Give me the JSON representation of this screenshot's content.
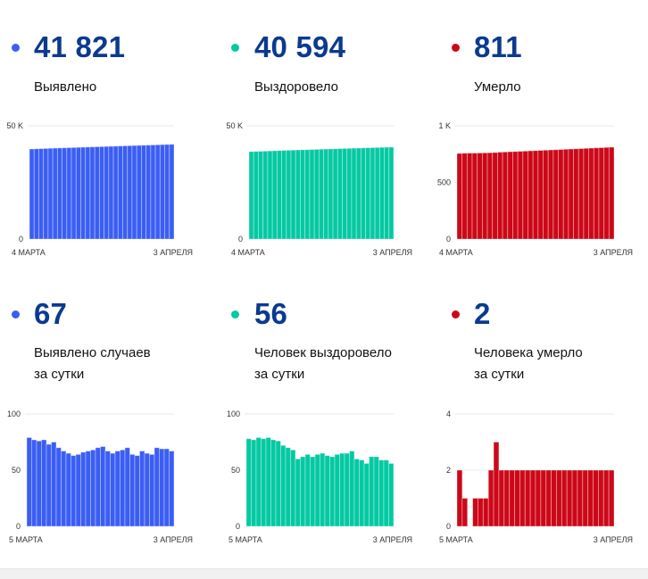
{
  "colors": {
    "cases": "#3a5ef5",
    "recovered": "#05c9a3",
    "deaths": "#cc0818",
    "value_text": "#0b3a8f",
    "grid": "#e9e9e9"
  },
  "cards": [
    {
      "id": "cases-total",
      "value": "41 821",
      "label_lines": [
        "Выявлено"
      ],
      "color_key": "cases"
    },
    {
      "id": "recovered-total",
      "value": "40 594",
      "label_lines": [
        "Выздоровело"
      ],
      "color_key": "recovered"
    },
    {
      "id": "deaths-total",
      "value": "811",
      "label_lines": [
        "Умерло"
      ],
      "color_key": "deaths"
    },
    {
      "id": "cases-daily",
      "value": "67",
      "label_lines": [
        "Выявлено случаев",
        "за сутки"
      ],
      "color_key": "cases"
    },
    {
      "id": "recovered-daily",
      "value": "56",
      "label_lines": [
        "Человек выздоровело",
        "за сутки"
      ],
      "color_key": "recovered"
    },
    {
      "id": "deaths-daily",
      "value": "2",
      "label_lines": [
        "Человека умерло",
        "за сутки"
      ],
      "color_key": "deaths"
    }
  ],
  "chart_data": [
    {
      "type": "bar",
      "title": "Выявлено",
      "color_key": "cases",
      "x_start_label": "4 МАРТА",
      "x_end_label": "3 АПРЕЛЯ",
      "ylim": [
        0,
        50000
      ],
      "yticks": [
        0,
        50000
      ],
      "ytick_labels": [
        "0",
        "50 K"
      ],
      "values": [
        39758,
        39837,
        39914,
        39990,
        40067,
        40140,
        40215,
        40285,
        40352,
        40417,
        40480,
        40544,
        40610,
        40677,
        40745,
        40815,
        40886,
        40953,
        41018,
        41085,
        41153,
        41223,
        41287,
        41350,
        41417,
        41482,
        41546,
        41616,
        41685,
        41754,
        41821
      ]
    },
    {
      "type": "bar",
      "title": "Выздоровело",
      "color_key": "recovered",
      "x_start_label": "4 МАРТА",
      "x_end_label": "3 АПРЕЛЯ",
      "ylim": [
        0,
        50000
      ],
      "yticks": [
        0,
        50000
      ],
      "ytick_labels": [
        "0",
        "50 K"
      ],
      "values": [
        38604,
        38682,
        38759,
        38838,
        38916,
        38995,
        39072,
        39148,
        39220,
        39290,
        39358,
        39418,
        39480,
        39544,
        39606,
        39670,
        39735,
        39798,
        39860,
        39924,
        39989,
        40054,
        40121,
        40181,
        40240,
        40296,
        40358,
        40420,
        40479,
        40538,
        40594
      ]
    },
    {
      "type": "bar",
      "title": "Умерло",
      "color_key": "deaths",
      "x_start_label": "4 МАРТА",
      "x_end_label": "3 АПРЕЛЯ",
      "ylim": [
        0,
        1000
      ],
      "yticks": [
        0,
        500,
        1000
      ],
      "ytick_labels": [
        "0",
        "500",
        "1 K"
      ],
      "values": [
        756,
        758,
        759,
        759,
        760,
        761,
        762,
        764,
        767,
        769,
        771,
        773,
        775,
        777,
        779,
        781,
        783,
        785,
        787,
        789,
        791,
        793,
        795,
        797,
        799,
        801,
        803,
        805,
        807,
        809,
        811
      ]
    },
    {
      "type": "bar",
      "title": "Выявлено случаев за сутки",
      "color_key": "cases",
      "x_start_label": "5 МАРТА",
      "x_end_label": "3 АПРЕЛЯ",
      "ylim": [
        0,
        100
      ],
      "yticks": [
        0,
        50,
        100
      ],
      "ytick_labels": [
        "0",
        "50",
        "100"
      ],
      "values": [
        79,
        77,
        76,
        77,
        73,
        75,
        70,
        67,
        65,
        63,
        64,
        66,
        67,
        68,
        70,
        71,
        67,
        65,
        67,
        68,
        70,
        64,
        63,
        67,
        65,
        64,
        70,
        69,
        69,
        67
      ]
    },
    {
      "type": "bar",
      "title": "Человек выздоровело за сутки",
      "color_key": "recovered",
      "x_start_label": "5 МАРТА",
      "x_end_label": "3 АПРЕЛЯ",
      "ylim": [
        0,
        100
      ],
      "yticks": [
        0,
        50,
        100
      ],
      "ytick_labels": [
        "0",
        "50",
        "100"
      ],
      "values": [
        78,
        77,
        79,
        78,
        79,
        77,
        76,
        72,
        70,
        68,
        60,
        62,
        64,
        62,
        64,
        65,
        63,
        62,
        64,
        65,
        65,
        67,
        60,
        59,
        56,
        62,
        62,
        59,
        59,
        56
      ]
    },
    {
      "type": "bar",
      "title": "Человека умерло за сутки",
      "color_key": "deaths",
      "x_start_label": "5 МАРТА",
      "x_end_label": "3 АПРЕЛЯ",
      "ylim": [
        0,
        4
      ],
      "yticks": [
        0,
        2,
        4
      ],
      "ytick_labels": [
        "0",
        "2",
        "4"
      ],
      "values": [
        2,
        1,
        0,
        1,
        1,
        1,
        2,
        3,
        2,
        2,
        2,
        2,
        2,
        2,
        2,
        2,
        2,
        2,
        2,
        2,
        2,
        2,
        2,
        2,
        2,
        2,
        2,
        2,
        2,
        2
      ]
    }
  ]
}
